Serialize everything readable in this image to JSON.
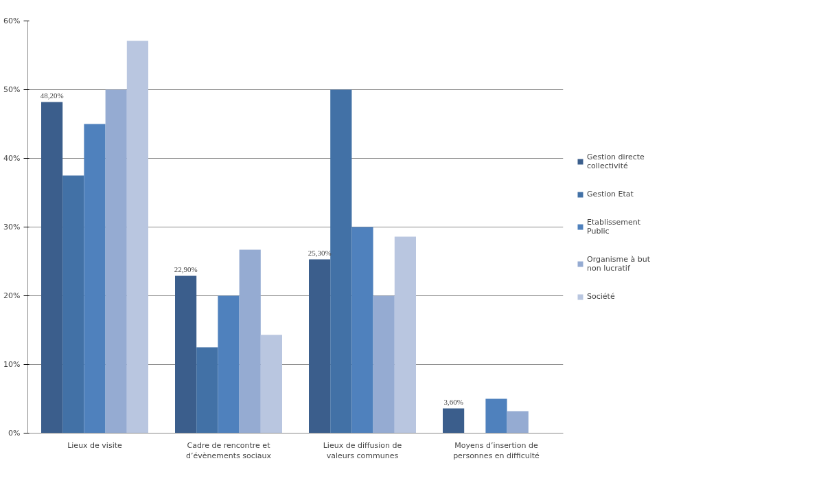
{
  "chart_data": {
    "type": "bar",
    "categories": [
      "Lieux de visite",
      "Cadre de rencontre et d’évènements sociaux",
      "Lieux de diffusion de valeurs communes",
      "Moyens d’insertion de personnes en difficulté"
    ],
    "series": [
      {
        "name": "Gestion directe collectivité",
        "color": "#3b5e8c",
        "values": [
          48.2,
          22.9,
          25.3,
          3.6
        ],
        "value_labels": [
          "48,20%",
          "22,90%",
          "25,30%",
          "3,60%"
        ]
      },
      {
        "name": "Gestion Etat",
        "color": "#4271a6",
        "values": [
          37.5,
          12.5,
          50,
          null
        ]
      },
      {
        "name": "Etablissement Public",
        "color": "#4f81bd",
        "values": [
          45,
          20,
          30,
          5
        ]
      },
      {
        "name": "Organisme à but non lucratif",
        "color": "#95abd2",
        "values": [
          50,
          26.7,
          20,
          3.2
        ]
      },
      {
        "name": "Société",
        "color": "#b9c6e0",
        "values": [
          57.1,
          14.3,
          28.6,
          null
        ]
      }
    ],
    "ylim": [
      0,
      60
    ],
    "yticks": [
      {
        "value": 0,
        "label": "0%"
      },
      {
        "value": 10,
        "label": "10%"
      },
      {
        "value": 20,
        "label": "20%"
      },
      {
        "value": 30,
        "label": "30%"
      },
      {
        "value": 40,
        "label": "40%"
      },
      {
        "value": 50,
        "label": "50%"
      },
      {
        "value": 60,
        "label": "60%"
      }
    ],
    "grid": "y",
    "legend": "right"
  }
}
